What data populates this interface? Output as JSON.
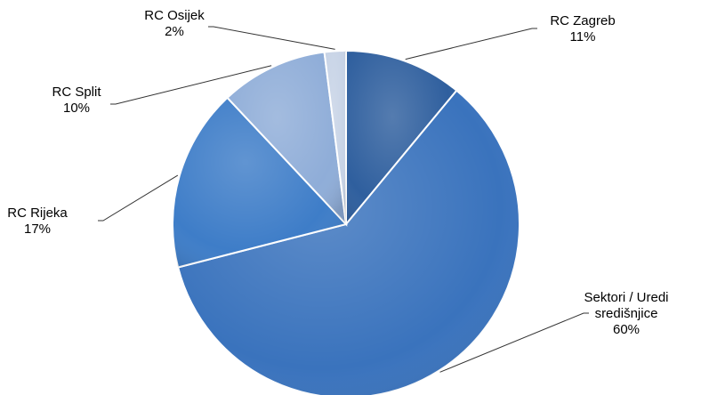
{
  "chart_data": {
    "type": "pie",
    "title": "",
    "slices": [
      {
        "label": "RC Zagreb",
        "value": 11,
        "value_label": "11%",
        "color": "#2f5f9e"
      },
      {
        "label": "Sektori / Uredi središnjice",
        "label_lines": [
          "Sektori / Uredi",
          "središnjice"
        ],
        "value": 60,
        "value_label": "60%",
        "color": "#3a73bd"
      },
      {
        "label": "RC Rijeka",
        "value": 17,
        "value_label": "17%",
        "color": "#3e7dc8"
      },
      {
        "label": "RC Split",
        "value": 10,
        "value_label": "10%",
        "color": "#8fadd8"
      },
      {
        "label": "RC Osijek",
        "value": 2,
        "value_label": "2%",
        "color": "#c7d3e6"
      }
    ],
    "legend": "none",
    "start": "12 o'clock, clockwise"
  }
}
